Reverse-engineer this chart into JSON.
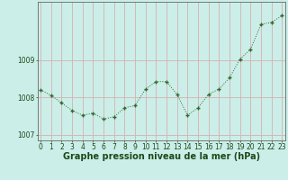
{
  "x": [
    0,
    1,
    2,
    3,
    4,
    5,
    6,
    7,
    8,
    9,
    10,
    11,
    12,
    13,
    14,
    15,
    16,
    17,
    18,
    19,
    20,
    21,
    22,
    23
  ],
  "y": [
    1008.2,
    1008.05,
    1007.85,
    1007.65,
    1007.52,
    1007.58,
    1007.42,
    1007.48,
    1007.72,
    1007.78,
    1008.22,
    1008.42,
    1008.42,
    1008.08,
    1007.52,
    1007.72,
    1008.08,
    1008.22,
    1008.52,
    1009.02,
    1009.28,
    1009.95,
    1010.0,
    1010.18
  ],
  "line_color": "#2d6a2d",
  "marker_color": "#2d6a2d",
  "bg_color": "#cceee8",
  "grid_color": "#d4b8b8",
  "xlabel": "Graphe pression niveau de la mer (hPa)",
  "xlabel_fontsize": 7,
  "ylabel_ticks": [
    1007,
    1008,
    1009
  ],
  "ylim": [
    1006.85,
    1010.55
  ],
  "xlim": [
    -0.3,
    23.3
  ],
  "xticks": [
    0,
    1,
    2,
    3,
    4,
    5,
    6,
    7,
    8,
    9,
    10,
    11,
    12,
    13,
    14,
    15,
    16,
    17,
    18,
    19,
    20,
    21,
    22,
    23
  ],
  "tick_fontsize": 5.5,
  "label_color": "#1a4a1a"
}
